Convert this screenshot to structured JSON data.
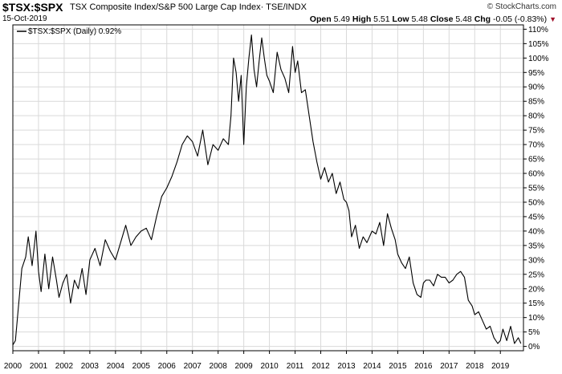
{
  "header": {
    "symbol": "$TSX:$SPX",
    "description": "TSX Composite Index/S&P 500 Large Cap Index· TSE/INDX",
    "date": "15-Oct-2019",
    "brand": "© StockCharts.com",
    "open_label": "Open",
    "open": "5.49",
    "high_label": "High",
    "high": "5.51",
    "low_label": "Low",
    "low": "5.48",
    "close_label": "Close",
    "close": "5.48",
    "chg_label": "Chg",
    "chg": "-0.05 (-0.83%)",
    "chg_icon": "down-triangle-icon"
  },
  "legend": {
    "label": "$TSX:$SPX (Daily) 0.92%"
  },
  "colors": {
    "line": "#000000",
    "grid": "#d9d9d9",
    "down": "#a0102a"
  },
  "chart_data": {
    "type": "line",
    "title": "TSX Composite Index/S&P 500 Large Cap Index",
    "xlabel": "",
    "ylabel": "",
    "x_unit": "year",
    "y_unit": "percent change",
    "xlim": [
      2000.0,
      2019.9
    ],
    "ylim": [
      -1.5,
      111.5
    ],
    "y_ticks": [
      0,
      5,
      10,
      15,
      20,
      25,
      30,
      35,
      40,
      45,
      50,
      55,
      60,
      65,
      70,
      75,
      80,
      85,
      90,
      95,
      100,
      105,
      110
    ],
    "y_tick_labels": [
      "0%",
      "5%",
      "10%",
      "15%",
      "20%",
      "25%",
      "30%",
      "35%",
      "40%",
      "45%",
      "50%",
      "55%",
      "60%",
      "65%",
      "70%",
      "75%",
      "80%",
      "85%",
      "90%",
      "95%",
      "100%",
      "105%",
      "110%"
    ],
    "x_ticks": [
      2000,
      2001,
      2002,
      2003,
      2004,
      2005,
      2006,
      2007,
      2008,
      2009,
      2010,
      2011,
      2012,
      2013,
      2014,
      2015,
      2016,
      2017,
      2018,
      2019
    ],
    "x_tick_labels": [
      "2000",
      "2001",
      "2002",
      "2003",
      "2004",
      "2005",
      "2006",
      "2007",
      "2008",
      "2009",
      "2010",
      "2011",
      "2012",
      "2013",
      "2014",
      "2015",
      "2016",
      "2017",
      "2018",
      "2019"
    ],
    "grid": true,
    "series": [
      {
        "name": "$TSX:$SPX (Daily)",
        "x": [
          2000.0,
          2000.1,
          2000.2,
          2000.35,
          2000.5,
          2000.6,
          2000.75,
          2000.9,
          2001.0,
          2001.1,
          2001.25,
          2001.4,
          2001.55,
          2001.7,
          2001.8,
          2001.95,
          2002.1,
          2002.25,
          2002.4,
          2002.55,
          2002.7,
          2002.85,
          2003.0,
          2003.2,
          2003.4,
          2003.6,
          2003.8,
          2004.0,
          2004.2,
          2004.4,
          2004.6,
          2004.8,
          2005.0,
          2005.2,
          2005.4,
          2005.6,
          2005.8,
          2006.0,
          2006.2,
          2006.4,
          2006.6,
          2006.8,
          2007.0,
          2007.2,
          2007.4,
          2007.6,
          2007.8,
          2008.0,
          2008.2,
          2008.4,
          2008.5,
          2008.6,
          2008.7,
          2008.8,
          2008.9,
          2009.0,
          2009.1,
          2009.2,
          2009.3,
          2009.4,
          2009.5,
          2009.6,
          2009.7,
          2009.8,
          2009.9,
          2010.0,
          2010.15,
          2010.3,
          2010.45,
          2010.6,
          2010.75,
          2010.9,
          2011.0,
          2011.1,
          2011.25,
          2011.4,
          2011.55,
          2011.7,
          2011.85,
          2012.0,
          2012.15,
          2012.3,
          2012.45,
          2012.6,
          2012.75,
          2012.9,
          2013.0,
          2013.1,
          2013.2,
          2013.35,
          2013.5,
          2013.65,
          2013.8,
          2014.0,
          2014.15,
          2014.3,
          2014.45,
          2014.6,
          2014.75,
          2014.9,
          2015.0,
          2015.15,
          2015.3,
          2015.45,
          2015.6,
          2015.75,
          2015.9,
          2016.0,
          2016.1,
          2016.25,
          2016.4,
          2016.55,
          2016.7,
          2016.85,
          2017.0,
          2017.15,
          2017.3,
          2017.45,
          2017.6,
          2017.75,
          2017.9,
          2018.0,
          2018.15,
          2018.3,
          2018.45,
          2018.6,
          2018.75,
          2018.9,
          2019.0,
          2019.1,
          2019.25,
          2019.4,
          2019.55,
          2019.7,
          2019.8
        ],
        "y": [
          0.5,
          2,
          12,
          27,
          31,
          38,
          28,
          40,
          26,
          19,
          32,
          20,
          31,
          23,
          17,
          22,
          25,
          15,
          23,
          20,
          27,
          18,
          30,
          34,
          28,
          37,
          33,
          30,
          36,
          42,
          35,
          38,
          40,
          41,
          37,
          45,
          52,
          55,
          59,
          64,
          70,
          73,
          71,
          66,
          75,
          63,
          70,
          68,
          72,
          70,
          80,
          100,
          95,
          85,
          94,
          70,
          90,
          100,
          108,
          96,
          90,
          99,
          107,
          100,
          94,
          92,
          88,
          102,
          96,
          93,
          88,
          104,
          95,
          99,
          88,
          89,
          80,
          71,
          64,
          58,
          62,
          57,
          60,
          53,
          57,
          51,
          50,
          47,
          38,
          42,
          34,
          38,
          36,
          40,
          39,
          43,
          35,
          46,
          41,
          37,
          32,
          29,
          27,
          31,
          22,
          18,
          17,
          22,
          23,
          23,
          21,
          25,
          24,
          24,
          22,
          23,
          25,
          26,
          24,
          16,
          14,
          11,
          12,
          9,
          6,
          7,
          3,
          1,
          2,
          6,
          2,
          7,
          1,
          3,
          1
        ]
      }
    ]
  }
}
